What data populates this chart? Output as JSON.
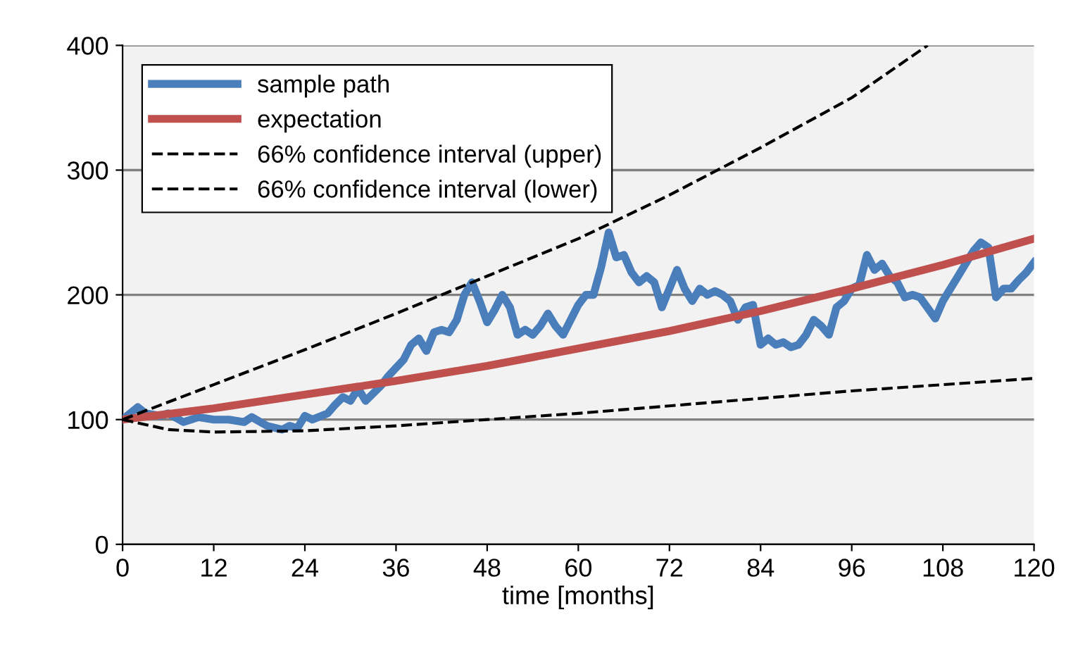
{
  "chart_data": {
    "type": "line",
    "xlabel": "time [months]",
    "xlim": [
      0,
      120
    ],
    "ylim": [
      0,
      400
    ],
    "xticks": [
      0,
      12,
      24,
      36,
      48,
      60,
      72,
      84,
      96,
      108,
      120
    ],
    "yticks": [
      0,
      100,
      200,
      300,
      400
    ],
    "grid": "y",
    "legend": "top left",
    "series": [
      {
        "name": "sample path",
        "color": "#4a7ebb",
        "line_style": "solid",
        "x": [
          0,
          2,
          3,
          5,
          6,
          8,
          10,
          12,
          14,
          16,
          17,
          19,
          21,
          22,
          23,
          24,
          25,
          27,
          28,
          29,
          30,
          31,
          32,
          34,
          35,
          37,
          38,
          39,
          40,
          41,
          42,
          43,
          44,
          45,
          46,
          47,
          48,
          49,
          50,
          51,
          52,
          53,
          54,
          55,
          56,
          57,
          58,
          59,
          60,
          61,
          62,
          63,
          64,
          65,
          66,
          67,
          68,
          69,
          70,
          71,
          72,
          73,
          74,
          75,
          76,
          77,
          78,
          79,
          80,
          81,
          82,
          83,
          84,
          85,
          86,
          87,
          88,
          89,
          90,
          91,
          92,
          93,
          94,
          95,
          96,
          97,
          98,
          99,
          100,
          101,
          102,
          103,
          104,
          105,
          107,
          108,
          109,
          110,
          111,
          112,
          113,
          114,
          115,
          116,
          117,
          118,
          119,
          120
        ],
        "values": [
          100,
          110,
          105,
          103,
          105,
          98,
          102,
          100,
          100,
          98,
          102,
          95,
          92,
          95,
          93,
          103,
          100,
          105,
          112,
          118,
          115,
          125,
          115,
          127,
          135,
          148,
          160,
          165,
          155,
          170,
          172,
          170,
          180,
          200,
          210,
          195,
          178,
          188,
          200,
          190,
          168,
          172,
          168,
          175,
          185,
          175,
          168,
          180,
          192,
          200,
          200,
          222,
          250,
          230,
          232,
          218,
          210,
          215,
          210,
          190,
          205,
          220,
          205,
          195,
          205,
          200,
          203,
          200,
          195,
          180,
          190,
          192,
          160,
          165,
          160,
          162,
          158,
          160,
          168,
          180,
          175,
          168,
          190,
          195,
          205,
          208,
          232,
          220,
          225,
          215,
          210,
          198,
          200,
          198,
          181,
          195,
          205,
          215,
          225,
          235,
          242,
          238,
          198,
          205,
          205,
          212,
          218,
          226
        ]
      },
      {
        "name": "expectation",
        "color": "#c0504d",
        "line_style": "solid",
        "x": [
          0,
          12,
          24,
          36,
          48,
          60,
          72,
          84,
          96,
          108,
          120
        ],
        "values": [
          100,
          109,
          120,
          131,
          143,
          157,
          171,
          187,
          205,
          224,
          245
        ]
      },
      {
        "name": "66% confidence interval (upper)",
        "color": "#000000",
        "line_style": "dashed",
        "x": [
          0,
          12,
          24,
          36,
          48,
          60,
          72,
          84,
          96,
          106
        ],
        "values": [
          100,
          128,
          156,
          185,
          215,
          245,
          280,
          318,
          358,
          400
        ]
      },
      {
        "name": "66% confidence interval (lower)",
        "color": "#000000",
        "line_style": "dashed",
        "x": [
          0,
          6,
          12,
          24,
          36,
          48,
          60,
          72,
          84,
          96,
          108,
          120
        ],
        "values": [
          100,
          92,
          90,
          91,
          95,
          100,
          105,
          111,
          117,
          123,
          128,
          133
        ]
      }
    ]
  }
}
